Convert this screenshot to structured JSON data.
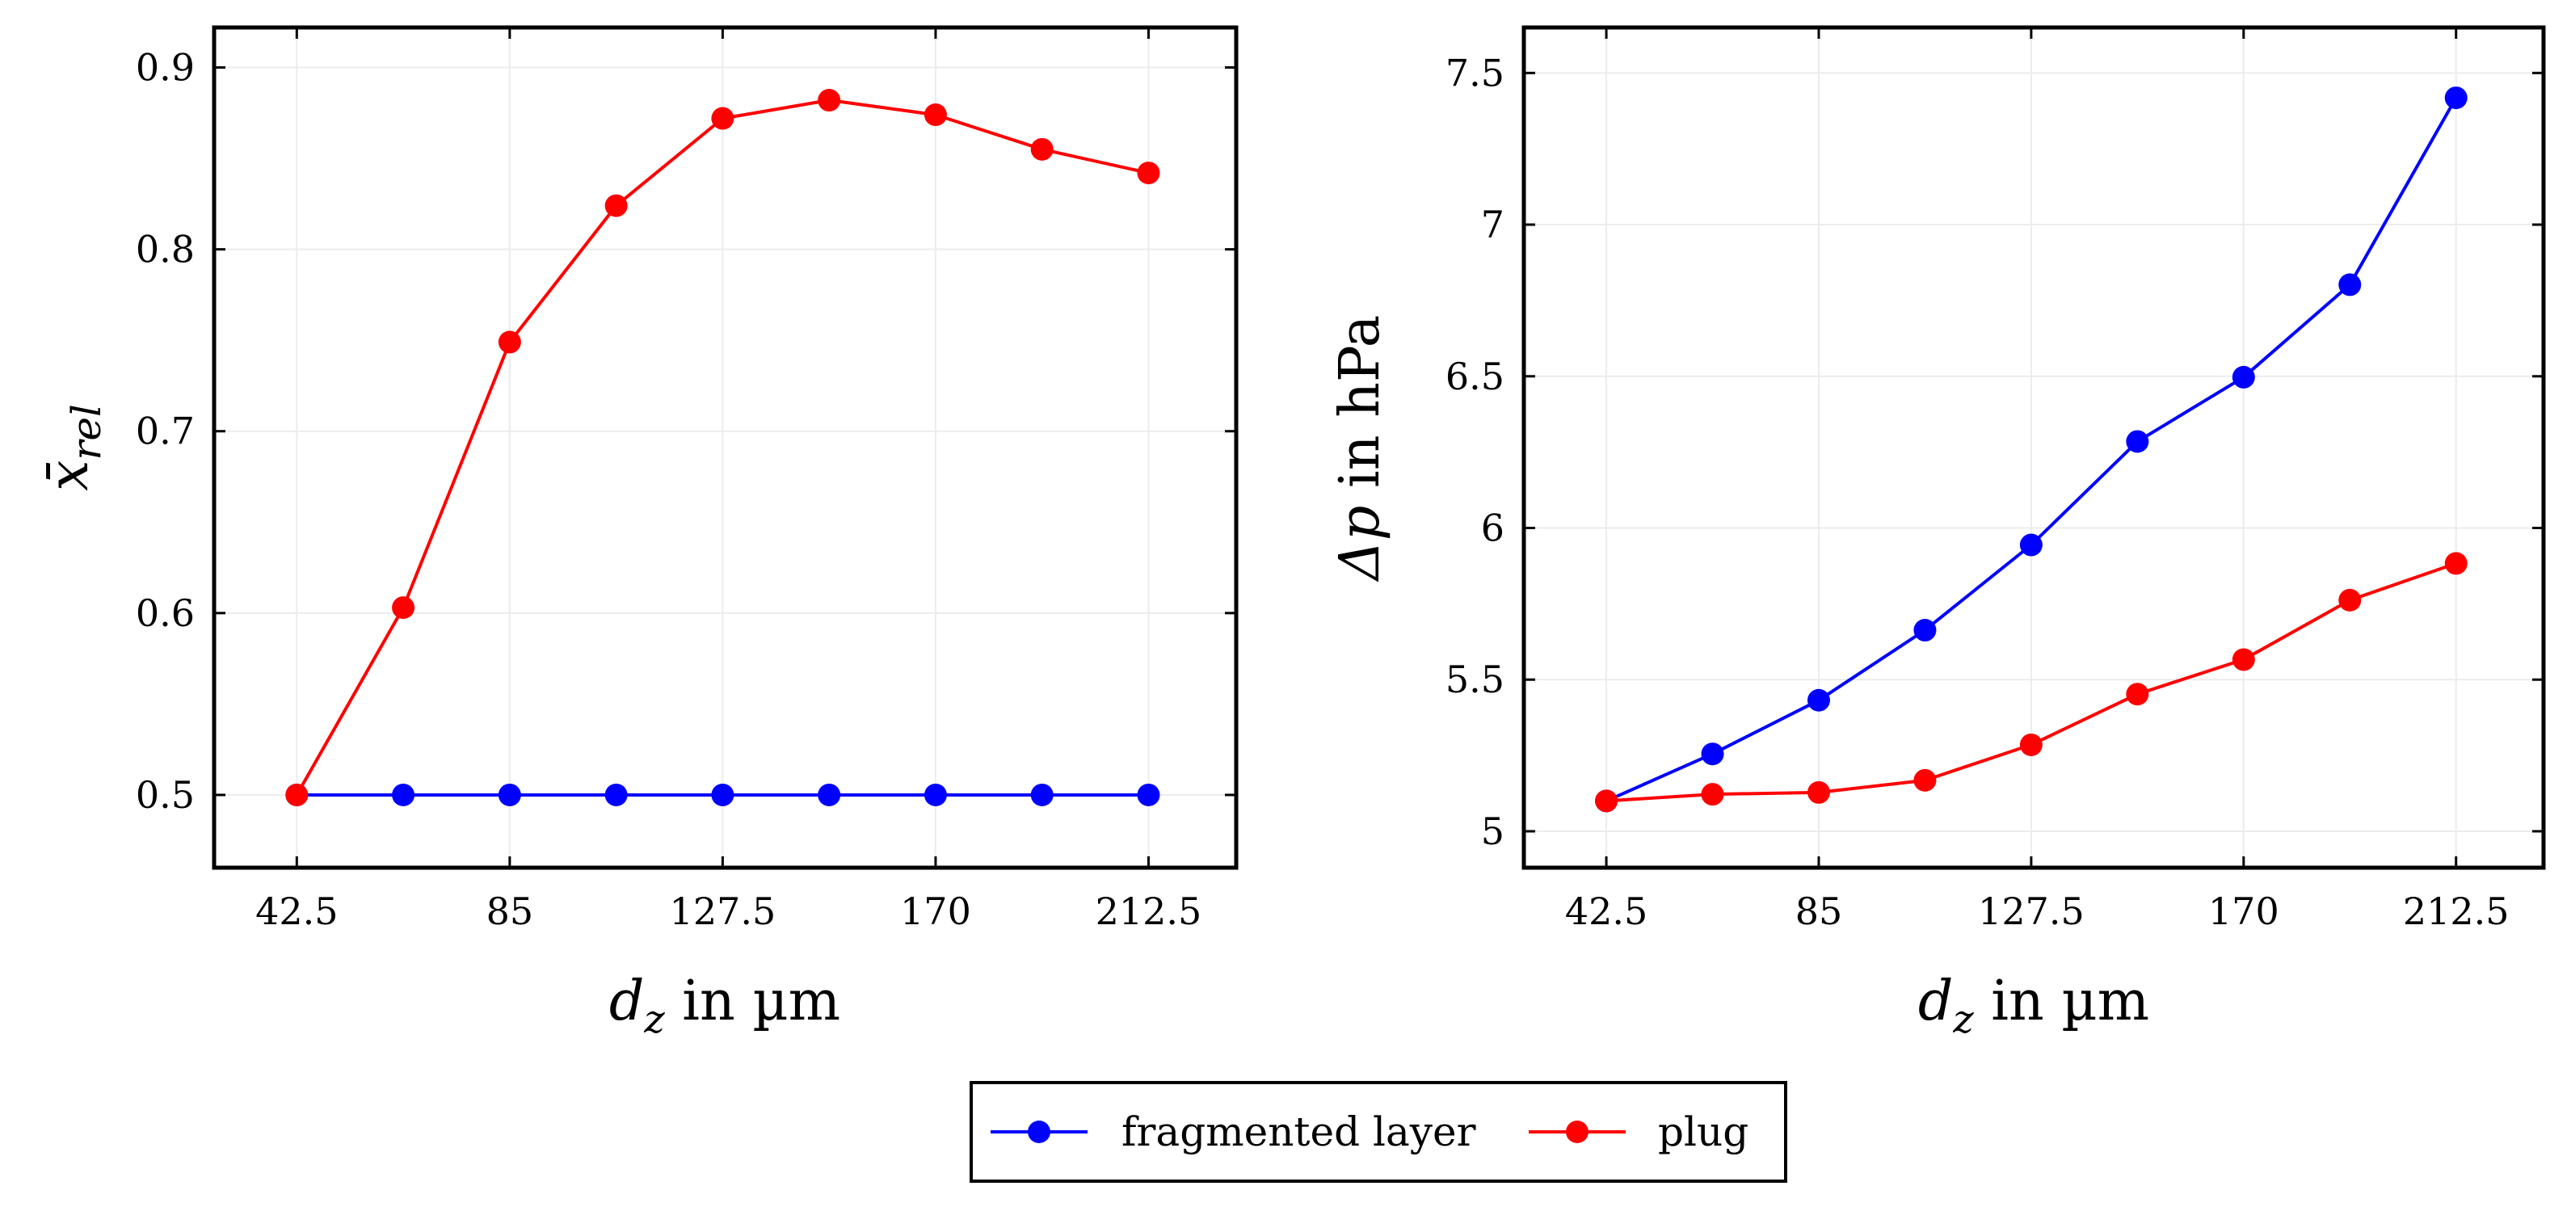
{
  "chart_data": [
    {
      "type": "line",
      "xlabel_var": "d",
      "xlabel_sub": "z",
      "xlabel_rest": " in µm",
      "ylabel_var": "x̄",
      "ylabel_sub": "rel",
      "x": [
        42.5,
        63.75,
        85,
        106.25,
        127.5,
        148.75,
        170,
        191.25,
        212.5
      ],
      "xticks": [
        42.5,
        85,
        127.5,
        170,
        212.5
      ],
      "xtick_labels": [
        "42.5",
        "85",
        "127.5",
        "170",
        "212.5"
      ],
      "xlim": [
        26,
        230
      ],
      "yticks": [
        0.5,
        0.6,
        0.7,
        0.8,
        0.9
      ],
      "ytick_labels": [
        "0.5",
        "0.6",
        "0.7",
        "0.8",
        "0.9"
      ],
      "ylim": [
        0.46,
        0.922
      ],
      "grid": true,
      "series": [
        {
          "name": "fragmented layer",
          "color": "#0000ff",
          "values": [
            0.5,
            0.5,
            0.5,
            0.5,
            0.5,
            0.5,
            0.5,
            0.5,
            0.5
          ]
        },
        {
          "name": "plug",
          "color": "#ff0000",
          "values": [
            0.5,
            0.603,
            0.749,
            0.824,
            0.872,
            0.882,
            0.874,
            0.855,
            0.842
          ]
        }
      ]
    },
    {
      "type": "line",
      "xlabel_var": "d",
      "xlabel_sub": "z",
      "xlabel_rest": " in µm",
      "ylabel_var": "Δp",
      "ylabel_rest": " in hPa",
      "x": [
        42.5,
        63.75,
        85,
        106.25,
        127.5,
        148.75,
        170,
        191.25,
        212.5
      ],
      "xticks": [
        42.5,
        85,
        127.5,
        170,
        212.5
      ],
      "xtick_labels": [
        "42.5",
        "85",
        "127.5",
        "170",
        "212.5"
      ],
      "xlim": [
        26,
        230
      ],
      "yticks": [
        5,
        5.5,
        6,
        6.5,
        7,
        7.5
      ],
      "ytick_labels": [
        "5",
        "5.5",
        "6",
        "6.5",
        "7",
        "7.5"
      ],
      "ylim": [
        4.88,
        7.65
      ],
      "grid": true,
      "series": [
        {
          "name": "fragmented layer",
          "color": "#0000ff",
          "values": [
            5.1,
            5.255,
            5.432,
            5.663,
            5.944,
            6.285,
            6.497,
            6.802,
            7.418
          ]
        },
        {
          "name": "plug",
          "color": "#ff0000",
          "values": [
            5.1,
            5.122,
            5.128,
            5.168,
            5.285,
            5.452,
            5.566,
            5.762,
            5.883
          ]
        }
      ]
    }
  ],
  "legend": {
    "placement": "bottom-center",
    "items": [
      {
        "label": "fragmented layer",
        "color": "#0000ff"
      },
      {
        "label": "plug",
        "color": "#ff0000"
      }
    ]
  }
}
